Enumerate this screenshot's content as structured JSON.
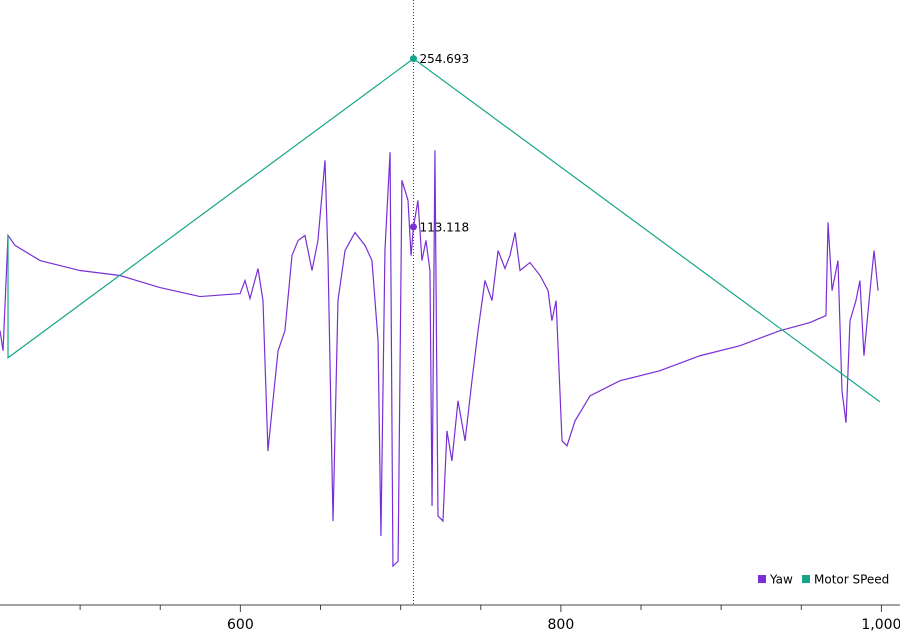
{
  "chart_data": {
    "type": "line",
    "xlim": [
      450,
      1011.6
    ],
    "ylim": [
      -205,
      304
    ],
    "xticks": [
      600,
      800,
      {
        "value": 1000,
        "label": "1,000"
      }
    ],
    "xminorticks": [
      500,
      550,
      650,
      700,
      750,
      850,
      900,
      950
    ],
    "series": [
      {
        "name": "Yaw",
        "color": "#7a2fd4",
        "x": [
          450,
          451.9,
          455.0,
          459.4,
          475.0,
          499.9,
          524.9,
          549.8,
          574.8,
          599.8,
          602.9,
          606.0,
          611.0,
          614.1,
          617.2,
          619.7,
          623.5,
          627.8,
          632.2,
          636.0,
          640.3,
          644.7,
          648.4,
          652.8,
          654.7,
          657.8,
          660.9,
          665.3,
          671.5,
          677.8,
          682.1,
          685.9,
          687.7,
          690.2,
          693.4,
          695.2,
          698.4,
          700.8,
          704.6,
          706.5,
          708,
          710.8,
          713.3,
          715.8,
          718.3,
          719.6,
          721.4,
          723.3,
          726.4,
          728.9,
          732.0,
          735.8,
          740.2,
          744.5,
          748.3,
          752.6,
          757.0,
          760.8,
          765.1,
          768.2,
          771.4,
          774.5,
          780.7,
          787.0,
          792.0,
          794.4,
          797.0,
          800.7,
          803.8,
          808.8,
          818.2,
          836.9,
          861.8,
          886.8,
          911.8,
          936.7,
          955.4,
          965.4,
          966.7,
          969.2,
          972.9,
          975.4,
          977.9,
          980.4,
          984.1,
          986.6,
          989.1,
          992.9,
          995.4,
          997.9
        ],
        "values": [
          25.8,
          8.9,
          105.9,
          97.5,
          84.8,
          76.4,
          72.2,
          62.1,
          54.5,
          57.0,
          68.0,
          52.8,
          78.1,
          51.1,
          -75.4,
          -41.6,
          8.9,
          25.8,
          89.0,
          101.7,
          105.9,
          76.4,
          101.7,
          169.1,
          84.8,
          -134.4,
          51.1,
          93.2,
          108.4,
          97.5,
          84.8,
          17.4,
          -147.0,
          93.2,
          175.9,
          -172.3,
          -168.1,
          152.3,
          135.4,
          89.0,
          113.118,
          135.4,
          84.8,
          101.7,
          76.4,
          -121.7,
          177.5,
          -130.1,
          -134.4,
          -58.5,
          -83.8,
          -33.2,
          -66.9,
          -16.3,
          25.8,
          68.0,
          51.1,
          93.2,
          78.1,
          89.0,
          108.4,
          76.4,
          83.1,
          72.2,
          59.5,
          34.2,
          51.1,
          -66.9,
          -71.1,
          -50.1,
          -29.0,
          -16.3,
          -7.9,
          4.7,
          13.2,
          25.8,
          32.6,
          38.5,
          116.9,
          59.5,
          84.8,
          -24.8,
          -51.7,
          34.2,
          51.1,
          68.0,
          4.7,
          59.5,
          93.2,
          59.5
        ]
      },
      {
        "name": "Motor SPeed",
        "color": "#17a589",
        "x": [
          455,
          455,
          708,
          999
        ],
        "values": [
          106,
          3,
          254.693,
          -34
        ]
      }
    ],
    "cursor": {
      "x": 708,
      "values": [
        113.118,
        254.693
      ]
    }
  }
}
